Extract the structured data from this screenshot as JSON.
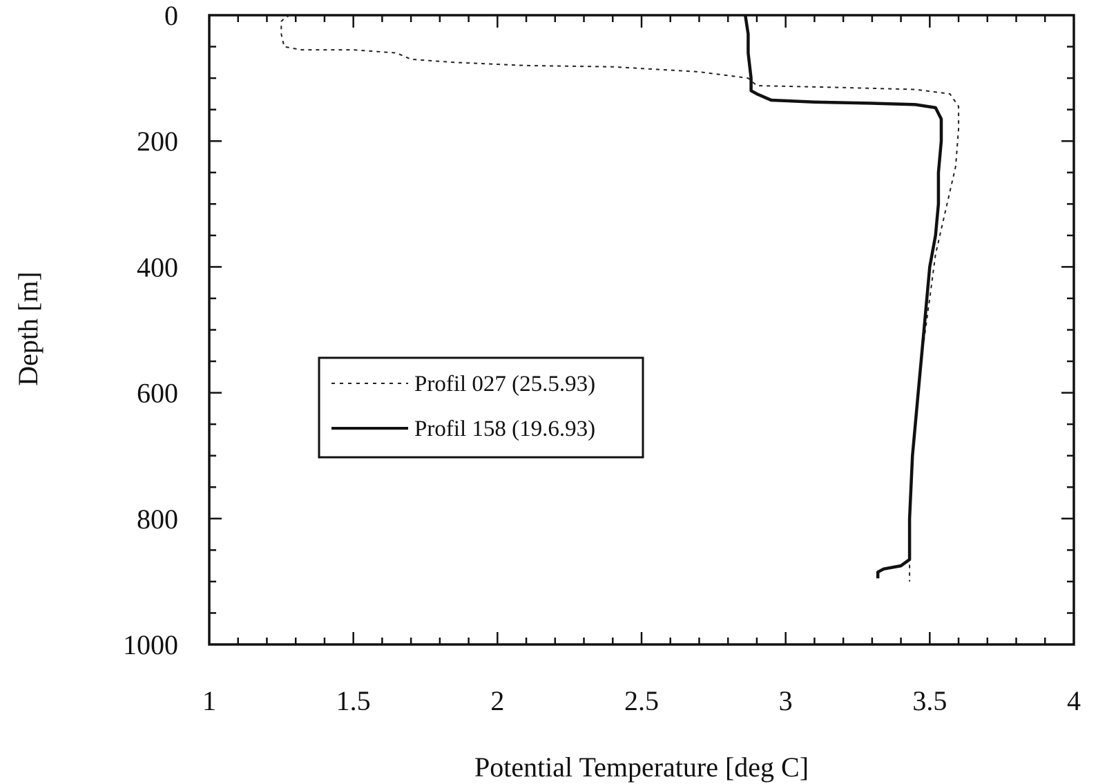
{
  "chart_data": {
    "type": "line",
    "title": "",
    "xlabel": "Potential Temperature [deg C]",
    "ylabel": "Depth [m]",
    "xlim": [
      1,
      4
    ],
    "ylim": [
      0,
      1000
    ],
    "y_inverted": true,
    "grid": false,
    "legend_position": "center-left",
    "x_ticks": [
      {
        "value": 1,
        "label": "1"
      },
      {
        "value": 1.5,
        "label": "1.5"
      },
      {
        "value": 2,
        "label": "2"
      },
      {
        "value": 2.5,
        "label": "2.5"
      },
      {
        "value": 3,
        "label": "3"
      },
      {
        "value": 3.5,
        "label": "3.5"
      },
      {
        "value": 4,
        "label": "4"
      }
    ],
    "y_ticks": [
      {
        "value": 0,
        "label": "0"
      },
      {
        "value": 200,
        "label": "200"
      },
      {
        "value": 400,
        "label": "400"
      },
      {
        "value": 600,
        "label": "600"
      },
      {
        "value": 800,
        "label": "800"
      },
      {
        "value": 1000,
        "label": "1000"
      }
    ],
    "series": [
      {
        "name": "Profil 027 (25.5.93)",
        "style": "dotted",
        "color": "#222222",
        "points": [
          [
            1.28,
            0
          ],
          [
            1.26,
            5
          ],
          [
            1.25,
            10
          ],
          [
            1.25,
            30
          ],
          [
            1.26,
            50
          ],
          [
            1.32,
            55
          ],
          [
            1.5,
            55
          ],
          [
            1.65,
            60
          ],
          [
            1.7,
            70
          ],
          [
            1.85,
            75
          ],
          [
            2.1,
            80
          ],
          [
            2.4,
            82
          ],
          [
            2.7,
            90
          ],
          [
            2.87,
            100
          ],
          [
            2.9,
            112
          ],
          [
            3.2,
            115
          ],
          [
            3.45,
            118
          ],
          [
            3.57,
            125
          ],
          [
            3.6,
            145
          ],
          [
            3.6,
            180
          ],
          [
            3.59,
            240
          ],
          [
            3.56,
            300
          ],
          [
            3.52,
            380
          ],
          [
            3.5,
            450
          ],
          [
            3.47,
            550
          ],
          [
            3.45,
            650
          ],
          [
            3.44,
            700
          ],
          [
            3.43,
            800
          ],
          [
            3.43,
            860
          ],
          [
            3.43,
            900
          ]
        ]
      },
      {
        "name": "Profil 158 (19.6.93)",
        "style": "solid",
        "color": "#111111",
        "points": [
          [
            2.86,
            0
          ],
          [
            2.87,
            30
          ],
          [
            2.87,
            60
          ],
          [
            2.88,
            100
          ],
          [
            2.88,
            120
          ],
          [
            2.9,
            125
          ],
          [
            2.95,
            135
          ],
          [
            3.1,
            138
          ],
          [
            3.3,
            140
          ],
          [
            3.45,
            142
          ],
          [
            3.52,
            147
          ],
          [
            3.54,
            165
          ],
          [
            3.54,
            200
          ],
          [
            3.53,
            250
          ],
          [
            3.53,
            300
          ],
          [
            3.52,
            350
          ],
          [
            3.5,
            400
          ],
          [
            3.48,
            500
          ],
          [
            3.46,
            600
          ],
          [
            3.44,
            700
          ],
          [
            3.43,
            800
          ],
          [
            3.43,
            865
          ],
          [
            3.4,
            875
          ],
          [
            3.34,
            880
          ],
          [
            3.32,
            885
          ],
          [
            3.32,
            895
          ]
        ]
      }
    ]
  }
}
